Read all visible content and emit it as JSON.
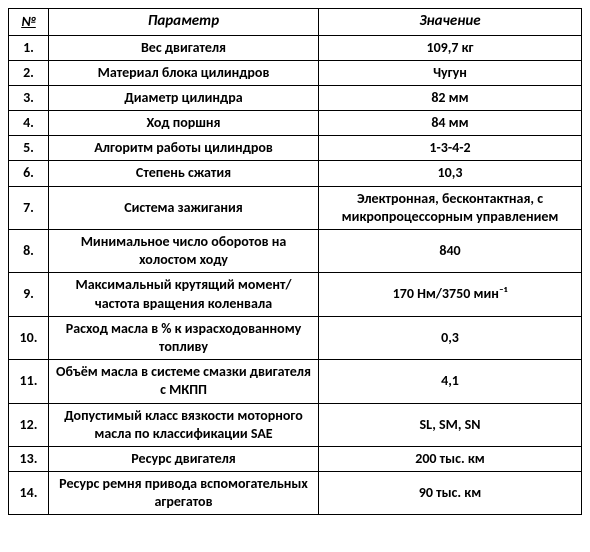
{
  "table": {
    "background_color": "#ffffff",
    "border_color": "#000000",
    "header_fontsize": 15,
    "cell_fontsize": 14,
    "font_family": "Calibri",
    "font_weight": "bold",
    "header_style": "italic",
    "text_color": "#000000",
    "columns": {
      "num": "№",
      "param": "Параметр",
      "value": "Значение"
    },
    "col_widths": {
      "num": 40,
      "param": 270
    },
    "rows": [
      {
        "num": "1.",
        "param": "Вес двигателя",
        "value": "109,7 кг"
      },
      {
        "num": "2.",
        "param": "Материал блока цилиндров",
        "value": "Чугун"
      },
      {
        "num": "3.",
        "param": "Диаметр цилиндра",
        "value": "82 мм"
      },
      {
        "num": "4.",
        "param": "Ход поршня",
        "value": "84 мм"
      },
      {
        "num": "5.",
        "param": "Алгоритм работы цилиндров",
        "value": "1-3-4-2"
      },
      {
        "num": "6.",
        "param": "Степень сжатия",
        "value": "10,3"
      },
      {
        "num": "7.",
        "param": "Система зажигания",
        "value": "Электронная, бесконтактная, с микропроцессорным управлением"
      },
      {
        "num": "8.",
        "param": "Минимальное число оборотов на холостом ходу",
        "value": "840"
      },
      {
        "num": "9.",
        "param": "Максимальный крутящий момент/\nчастота вращения коленвала",
        "value": "170 Нм/3750 мин⁻¹"
      },
      {
        "num": "10.",
        "param": "Расход масла в % к израсходованному топливу",
        "value": "0,3"
      },
      {
        "num": "11.",
        "param": "Объём масла в системе смазки двигателя с МКПП",
        "value": "4,1"
      },
      {
        "num": "12.",
        "param": "Допустимый класс вязкости моторного масла по классификации SAE",
        "value": "SL, SM, SN"
      },
      {
        "num": "13.",
        "param": "Ресурс двигателя",
        "value": "200 тыс. км"
      },
      {
        "num": "14.",
        "param": "Ресурс ремня привода вспомогательных агрегатов",
        "value": "90 тыс. км"
      }
    ]
  }
}
